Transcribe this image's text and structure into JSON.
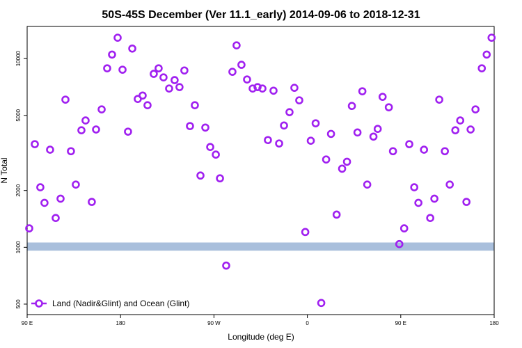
{
  "chart_data": {
    "type": "scatter",
    "title": "50S-45S December (Ver 11.1_early)   2014-09-06 to 2018-12-31",
    "x_label": "Longitude (deg E)",
    "y_label": "N Total",
    "xlim": [
      90,
      540
    ],
    "xticks": [
      {
        "value": 90,
        "label": "90 E"
      },
      {
        "value": 180,
        "label": "180"
      },
      {
        "value": 270,
        "label": "90 W"
      },
      {
        "value": 360,
        "label": "0"
      },
      {
        "value": 450,
        "label": "90 E"
      },
      {
        "value": 540,
        "label": "180"
      }
    ],
    "ylim": [
      440,
      14800
    ],
    "y_log": true,
    "yticks": [
      500,
      1000,
      2000,
      5000,
      10000
    ],
    "band": {
      "color": "#a9bfdc",
      "range": [
        960,
        1060
      ]
    },
    "legend": "bottom-left",
    "series": [
      {
        "name": "Land (Nadir&Glint) and Ocean (Glint)",
        "color": "#a020f0",
        "x": [
          92.0,
          97.4,
          102.7,
          106.7,
          112.1,
          117.5,
          122.2,
          126.9,
          132.2,
          136.9,
          142.3,
          146.3,
          152.3,
          156.4,
          161.8,
          167.1,
          171.8,
          177.2,
          181.9,
          187.2,
          191.3,
          196.6,
          201.3,
          206.0,
          212.0,
          216.7,
          221.4,
          226.8,
          232.1,
          236.8,
          241.5,
          246.9,
          251.6,
          257.0,
          261.7,
          266.4,
          271.8,
          275.8,
          281.8,
          287.8,
          291.8,
          296.5,
          301.9,
          307.3,
          312.0,
          316.7,
          322.0,
          327.4,
          332.8,
          337.5,
          342.8,
          347.5,
          352.2,
          358.0,
          363.3,
          368.0,
          373.4,
          378.1,
          382.8,
          388.2,
          393.5,
          398.2,
          402.9,
          408.3,
          413.0,
          417.7,
          423.7,
          427.8,
          432.5,
          438.5,
          442.5,
          448.6,
          453.3,
          458.2,
          463.0,
          467.0,
          472.4,
          478.4,
          482.4,
          487.1,
          492.5,
          497.2,
          502.6,
          507.3,
          513.3,
          517.3,
          522.0,
          528.1,
          532.8,
          537.5
        ],
        "values": [
          1260,
          3520,
          2080,
          1720,
          3290,
          1430,
          1810,
          6060,
          3230,
          2150,
          4170,
          4700,
          1740,
          4210,
          5380,
          8880,
          10500,
          12900,
          8730,
          4100,
          11300,
          6110,
          6370,
          5660,
          8300,
          8880,
          7950,
          6940,
          7690,
          7060,
          8650,
          4390,
          5660,
          2400,
          4310,
          3400,
          3100,
          2320,
          800,
          8510,
          11750,
          9270,
          7750,
          6940,
          7060,
          6940,
          3700,
          6760,
          3550,
          4420,
          5200,
          7000,
          6010,
          1205,
          3670,
          4540,
          507,
          2920,
          3990,
          1490,
          2610,
          2840,
          5610,
          4060,
          6710,
          2150,
          3860,
          4240,
          6270,
          5520,
          3230,
          1040,
          1260,
          3520,
          2080,
          1720,
          3290,
          1430,
          1810,
          6060,
          3230,
          2150,
          4170,
          4700,
          1740,
          4210,
          5380,
          8880,
          10500,
          12900
        ]
      }
    ]
  }
}
